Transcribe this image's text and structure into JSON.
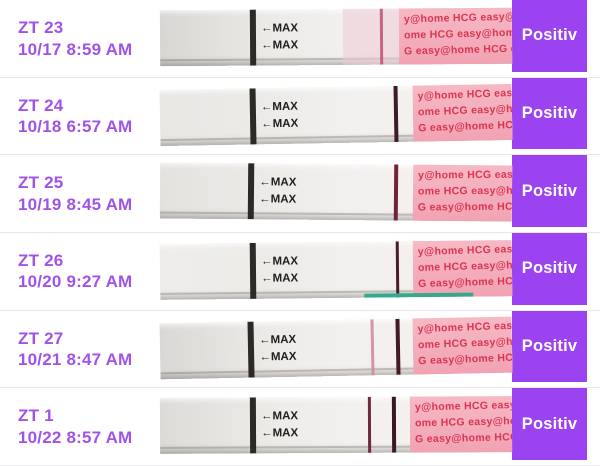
{
  "ui": {
    "colors": {
      "label_purple": "#A152E8",
      "button_purple": "#9B43F0",
      "button_text": "#FFFFFF",
      "separator": "#E9E7EC",
      "strip_marker_black": "#2C2926",
      "wrapper_pink": "#F3ABBA",
      "brand_red": "#DB3450"
    },
    "strip_max_label": "←MAX",
    "brand_pattern": [
      "y@home HCG easy@home HCG",
      "ome HCG easy@home HCG",
      "G easy@home HCG easy@"
    ]
  },
  "rows": [
    {
      "cycle_day": "ZT 23",
      "timestamp": "10/17 8:59 AM",
      "result": "Positiv",
      "strip": {
        "tilt": -0.4,
        "base": "#d7d6d3",
        "black_line": 25.5,
        "wrapper_start": 68,
        "tint": {
          "start": 52,
          "color": "rgba(236,203,211,0.55)"
        },
        "lines": [
          {
            "pos": 62.5,
            "color": "#BF4F72",
            "width": 3,
            "opacity": 0.85
          }
        ]
      }
    },
    {
      "cycle_day": "ZT 24",
      "timestamp": "10/18 6:57 AM",
      "result": "Positiv",
      "strip": {
        "tilt": -1.0,
        "base": "#e9e7e4",
        "black_line": 25.5,
        "wrapper_start": 72,
        "lines": [
          {
            "pos": 66.5,
            "color": "#3E1B2A",
            "width": 4,
            "opacity": 1
          }
        ]
      }
    },
    {
      "cycle_day": "ZT 25",
      "timestamp": "10/19 8:45 AM",
      "result": "Positiv",
      "strip": {
        "tilt": 0.5,
        "base": "#e4e2df",
        "black_line": 25.0,
        "wrapper_start": 72,
        "lines": [
          {
            "pos": 66.5,
            "color": "#702339",
            "width": 3.5,
            "opacity": 1
          }
        ]
      }
    },
    {
      "cycle_day": "ZT 26",
      "timestamp": "10/20 9:27 AM",
      "result": "Positiv",
      "strip": {
        "tilt": -0.6,
        "base": "#efedeb",
        "black_line": 25.5,
        "wrapper_start": 72,
        "bottom_accent": "#35A98E",
        "lines": [
          {
            "pos": 67,
            "color": "#4B1C2D",
            "width": 3.5,
            "opacity": 1
          }
        ]
      }
    },
    {
      "cycle_day": "ZT 27",
      "timestamp": "10/21 8:47 AM",
      "result": "Positiv",
      "strip": {
        "tilt": -1.1,
        "base": "#d9d8d5",
        "black_line": 25.0,
        "wrapper_start": 72,
        "lines": [
          {
            "pos": 60,
            "color": "#D189A0",
            "width": 2.5,
            "opacity": 0.9
          },
          {
            "pos": 67,
            "color": "#451826",
            "width": 4,
            "opacity": 1
          }
        ]
      }
    },
    {
      "cycle_day": "ZT 1",
      "timestamp": "10/22 8:57 AM",
      "result": "Positiv",
      "strip": {
        "tilt": -0.3,
        "base": "#dcdbd8",
        "black_line": 25.5,
        "wrapper_start": 71,
        "lines": [
          {
            "pos": 59,
            "color": "#6D2A3F",
            "width": 3.5,
            "opacity": 1
          },
          {
            "pos": 66,
            "color": "#3C1726",
            "width": 4,
            "opacity": 1
          }
        ]
      }
    }
  ]
}
